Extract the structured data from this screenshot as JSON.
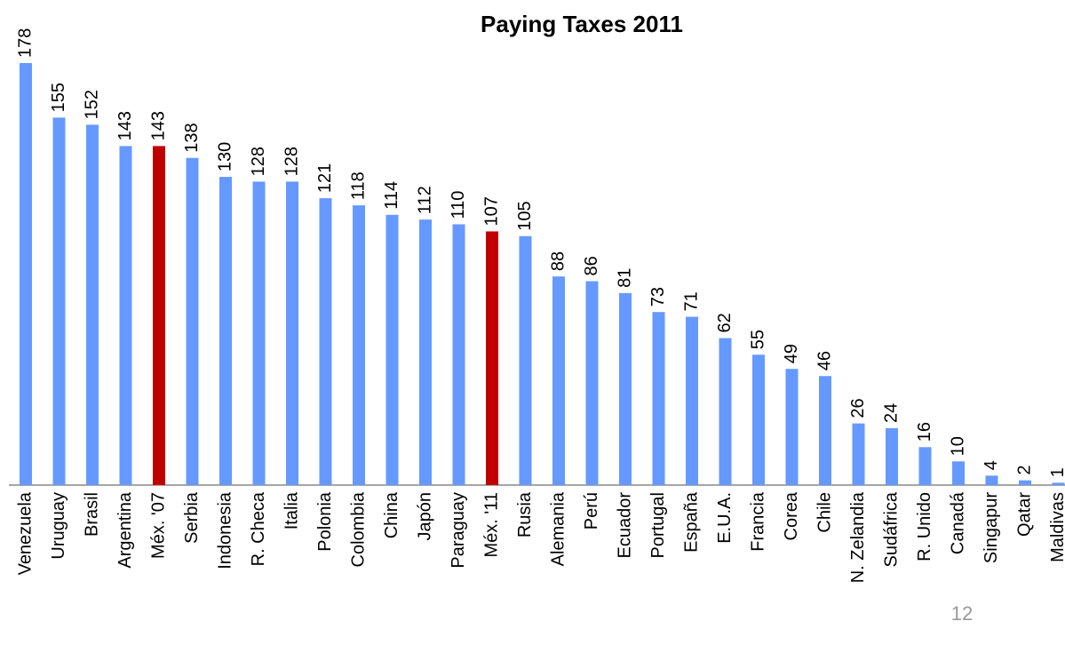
{
  "chart_data": {
    "type": "bar",
    "title": "Paying Taxes 2011",
    "categories": [
      "Venezuela",
      "Uruguay",
      "Brasil",
      "Argentina",
      "Méx. '07",
      "Serbia",
      "Indonesia",
      "R. Checa",
      "Italia",
      "Polonia",
      "Colombia",
      "China",
      "Japón",
      "Paraguay",
      "Méx. '11",
      "Rusia",
      "Alemania",
      "Perú",
      "Ecuador",
      "Portugal",
      "España",
      "E.U.A.",
      "Francia",
      "Corea",
      "Chile",
      "N. Zelandia",
      "Sudáfrica",
      "R. Unido",
      "Canadá",
      "Singapur",
      "Qatar",
      "Maldivas"
    ],
    "values": [
      178,
      155,
      152,
      143,
      143,
      138,
      130,
      128,
      128,
      121,
      118,
      114,
      112,
      110,
      107,
      105,
      88,
      86,
      81,
      73,
      71,
      62,
      55,
      49,
      46,
      26,
      24,
      16,
      10,
      4,
      2,
      1
    ],
    "colors": [
      "#6699ff",
      "#6699ff",
      "#6699ff",
      "#6699ff",
      "#c00000",
      "#6699ff",
      "#6699ff",
      "#6699ff",
      "#6699ff",
      "#6699ff",
      "#6699ff",
      "#6699ff",
      "#6699ff",
      "#6699ff",
      "#c00000",
      "#6699ff",
      "#6699ff",
      "#6699ff",
      "#6699ff",
      "#6699ff",
      "#6699ff",
      "#6699ff",
      "#6699ff",
      "#6699ff",
      "#6699ff",
      "#6699ff",
      "#6699ff",
      "#6699ff",
      "#6699ff",
      "#6699ff",
      "#6699ff",
      "#6699ff"
    ]
  },
  "page_number": "12"
}
